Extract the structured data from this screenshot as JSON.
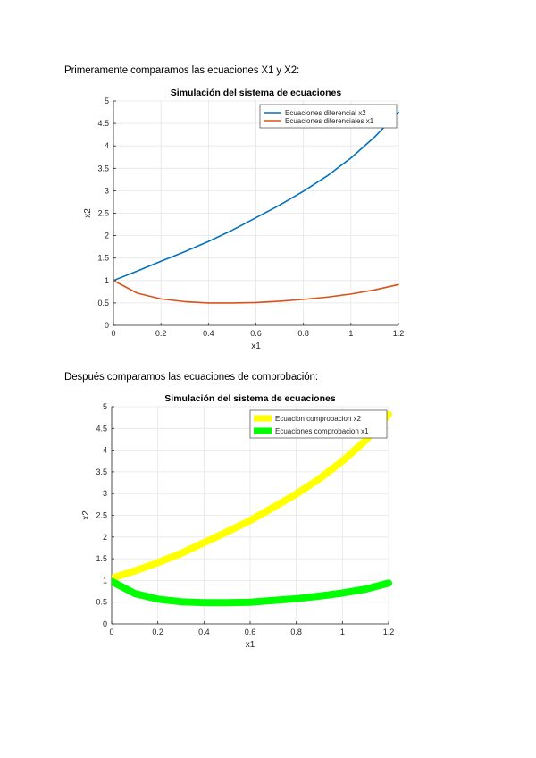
{
  "paragraphs": {
    "intro": "Primeramente comparamos las ecuaciones X1 y X2:",
    "second": "Después comparamos las ecuaciones de comprobación:"
  },
  "chart_data": [
    {
      "type": "line",
      "title": "Simulación del sistema de ecuaciones",
      "xlabel": "x1",
      "ylabel": "x2",
      "xlim": [
        0,
        1.2
      ],
      "ylim": [
        0,
        5
      ],
      "xticks": [
        "0",
        "0.2",
        "0.4",
        "0.6",
        "0.8",
        "1",
        "1.2"
      ],
      "yticks": [
        "0",
        "0.5",
        "1",
        "1.5",
        "2",
        "2.5",
        "3",
        "3.5",
        "4",
        "4.5",
        "5"
      ],
      "grid": true,
      "legend_position": "top-right",
      "series": [
        {
          "name": "Ecuaciones diferencial x2",
          "color": "#0072BD",
          "x": [
            0,
            0.1,
            0.2,
            0.3,
            0.4,
            0.5,
            0.6,
            0.7,
            0.8,
            0.9,
            1.0,
            1.1,
            1.2
          ],
          "y": [
            1.0,
            1.21,
            1.43,
            1.64,
            1.87,
            2.12,
            2.4,
            2.68,
            2.99,
            3.33,
            3.73,
            4.2,
            4.75
          ]
        },
        {
          "name": "Ecuaciones diferenciales x1",
          "color": "#D95319",
          "x": [
            0,
            0.1,
            0.2,
            0.3,
            0.4,
            0.5,
            0.6,
            0.7,
            0.8,
            0.9,
            1.0,
            1.1,
            1.2
          ],
          "y": [
            1.0,
            0.72,
            0.59,
            0.53,
            0.5,
            0.5,
            0.51,
            0.54,
            0.58,
            0.63,
            0.7,
            0.79,
            0.91
          ]
        }
      ]
    },
    {
      "type": "line",
      "title": "Simulación del sistema de ecuaciones",
      "xlabel": "x1",
      "ylabel": "x2",
      "xlim": [
        0,
        1.2
      ],
      "ylim": [
        0,
        5
      ],
      "xticks": [
        "0",
        "0.2",
        "0.4",
        "0.6",
        "0.8",
        "1",
        "1.2"
      ],
      "yticks": [
        "0",
        "0.5",
        "1",
        "1.5",
        "2",
        "2.5",
        "3",
        "3.5",
        "4",
        "4.5",
        "5"
      ],
      "grid": true,
      "legend_position": "top-right",
      "series": [
        {
          "name": "Ecuacion comprobacion x2",
          "color": "#FFFF00",
          "x": [
            0,
            0.1,
            0.2,
            0.3,
            0.4,
            0.5,
            0.6,
            0.7,
            0.8,
            0.9,
            1.0,
            1.1,
            1.2
          ],
          "y": [
            1.05,
            1.22,
            1.41,
            1.62,
            1.87,
            2.12,
            2.38,
            2.68,
            2.99,
            3.34,
            3.75,
            4.22,
            4.82
          ]
        },
        {
          "name": "Ecuaciones comprobacion x1",
          "color": "#00FF00",
          "x": [
            0,
            0.1,
            0.2,
            0.3,
            0.4,
            0.5,
            0.6,
            0.7,
            0.8,
            0.9,
            1.0,
            1.1,
            1.2
          ],
          "y": [
            0.98,
            0.7,
            0.57,
            0.51,
            0.49,
            0.49,
            0.5,
            0.54,
            0.58,
            0.64,
            0.71,
            0.8,
            0.94
          ]
        }
      ]
    }
  ]
}
